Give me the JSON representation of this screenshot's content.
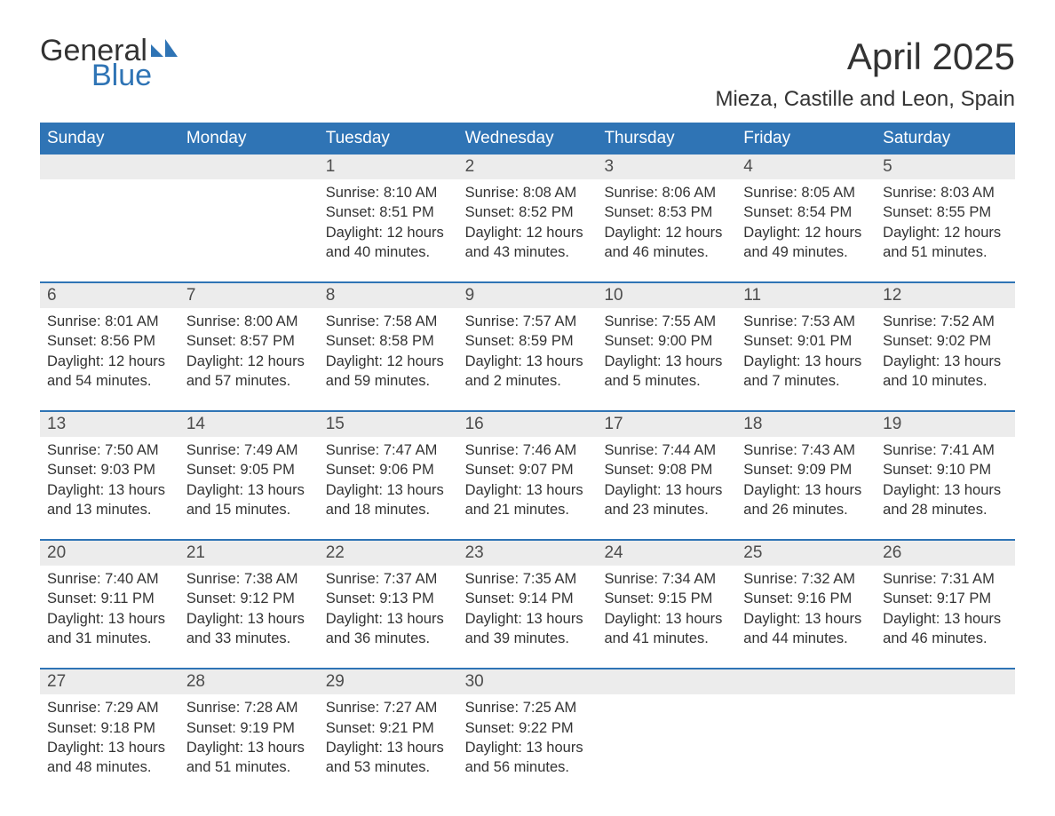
{
  "logo": {
    "text1": "General",
    "text2": "Blue",
    "flag_color": "#2f74b5"
  },
  "title": "April 2025",
  "location": "Mieza, Castille and Leon, Spain",
  "colors": {
    "header_bg": "#2f74b5",
    "header_text": "#ffffff",
    "daynum_bg": "#ececec",
    "row_border": "#2f74b5",
    "body_text": "#333333"
  },
  "weekdays": [
    "Sunday",
    "Monday",
    "Tuesday",
    "Wednesday",
    "Thursday",
    "Friday",
    "Saturday"
  ],
  "weeks": [
    [
      {
        "n": "",
        "lines": []
      },
      {
        "n": "",
        "lines": []
      },
      {
        "n": "1",
        "lines": [
          "Sunrise: 8:10 AM",
          "Sunset: 8:51 PM",
          "Daylight: 12 hours and 40 minutes."
        ]
      },
      {
        "n": "2",
        "lines": [
          "Sunrise: 8:08 AM",
          "Sunset: 8:52 PM",
          "Daylight: 12 hours and 43 minutes."
        ]
      },
      {
        "n": "3",
        "lines": [
          "Sunrise: 8:06 AM",
          "Sunset: 8:53 PM",
          "Daylight: 12 hours and 46 minutes."
        ]
      },
      {
        "n": "4",
        "lines": [
          "Sunrise: 8:05 AM",
          "Sunset: 8:54 PM",
          "Daylight: 12 hours and 49 minutes."
        ]
      },
      {
        "n": "5",
        "lines": [
          "Sunrise: 8:03 AM",
          "Sunset: 8:55 PM",
          "Daylight: 12 hours and 51 minutes."
        ]
      }
    ],
    [
      {
        "n": "6",
        "lines": [
          "Sunrise: 8:01 AM",
          "Sunset: 8:56 PM",
          "Daylight: 12 hours and 54 minutes."
        ]
      },
      {
        "n": "7",
        "lines": [
          "Sunrise: 8:00 AM",
          "Sunset: 8:57 PM",
          "Daylight: 12 hours and 57 minutes."
        ]
      },
      {
        "n": "8",
        "lines": [
          "Sunrise: 7:58 AM",
          "Sunset: 8:58 PM",
          "Daylight: 12 hours and 59 minutes."
        ]
      },
      {
        "n": "9",
        "lines": [
          "Sunrise: 7:57 AM",
          "Sunset: 8:59 PM",
          "Daylight: 13 hours and 2 minutes."
        ]
      },
      {
        "n": "10",
        "lines": [
          "Sunrise: 7:55 AM",
          "Sunset: 9:00 PM",
          "Daylight: 13 hours and 5 minutes."
        ]
      },
      {
        "n": "11",
        "lines": [
          "Sunrise: 7:53 AM",
          "Sunset: 9:01 PM",
          "Daylight: 13 hours and 7 minutes."
        ]
      },
      {
        "n": "12",
        "lines": [
          "Sunrise: 7:52 AM",
          "Sunset: 9:02 PM",
          "Daylight: 13 hours and 10 minutes."
        ]
      }
    ],
    [
      {
        "n": "13",
        "lines": [
          "Sunrise: 7:50 AM",
          "Sunset: 9:03 PM",
          "Daylight: 13 hours and 13 minutes."
        ]
      },
      {
        "n": "14",
        "lines": [
          "Sunrise: 7:49 AM",
          "Sunset: 9:05 PM",
          "Daylight: 13 hours and 15 minutes."
        ]
      },
      {
        "n": "15",
        "lines": [
          "Sunrise: 7:47 AM",
          "Sunset: 9:06 PM",
          "Daylight: 13 hours and 18 minutes."
        ]
      },
      {
        "n": "16",
        "lines": [
          "Sunrise: 7:46 AM",
          "Sunset: 9:07 PM",
          "Daylight: 13 hours and 21 minutes."
        ]
      },
      {
        "n": "17",
        "lines": [
          "Sunrise: 7:44 AM",
          "Sunset: 9:08 PM",
          "Daylight: 13 hours and 23 minutes."
        ]
      },
      {
        "n": "18",
        "lines": [
          "Sunrise: 7:43 AM",
          "Sunset: 9:09 PM",
          "Daylight: 13 hours and 26 minutes."
        ]
      },
      {
        "n": "19",
        "lines": [
          "Sunrise: 7:41 AM",
          "Sunset: 9:10 PM",
          "Daylight: 13 hours and 28 minutes."
        ]
      }
    ],
    [
      {
        "n": "20",
        "lines": [
          "Sunrise: 7:40 AM",
          "Sunset: 9:11 PM",
          "Daylight: 13 hours and 31 minutes."
        ]
      },
      {
        "n": "21",
        "lines": [
          "Sunrise: 7:38 AM",
          "Sunset: 9:12 PM",
          "Daylight: 13 hours and 33 minutes."
        ]
      },
      {
        "n": "22",
        "lines": [
          "Sunrise: 7:37 AM",
          "Sunset: 9:13 PM",
          "Daylight: 13 hours and 36 minutes."
        ]
      },
      {
        "n": "23",
        "lines": [
          "Sunrise: 7:35 AM",
          "Sunset: 9:14 PM",
          "Daylight: 13 hours and 39 minutes."
        ]
      },
      {
        "n": "24",
        "lines": [
          "Sunrise: 7:34 AM",
          "Sunset: 9:15 PM",
          "Daylight: 13 hours and 41 minutes."
        ]
      },
      {
        "n": "25",
        "lines": [
          "Sunrise: 7:32 AM",
          "Sunset: 9:16 PM",
          "Daylight: 13 hours and 44 minutes."
        ]
      },
      {
        "n": "26",
        "lines": [
          "Sunrise: 7:31 AM",
          "Sunset: 9:17 PM",
          "Daylight: 13 hours and 46 minutes."
        ]
      }
    ],
    [
      {
        "n": "27",
        "lines": [
          "Sunrise: 7:29 AM",
          "Sunset: 9:18 PM",
          "Daylight: 13 hours and 48 minutes."
        ]
      },
      {
        "n": "28",
        "lines": [
          "Sunrise: 7:28 AM",
          "Sunset: 9:19 PM",
          "Daylight: 13 hours and 51 minutes."
        ]
      },
      {
        "n": "29",
        "lines": [
          "Sunrise: 7:27 AM",
          "Sunset: 9:21 PM",
          "Daylight: 13 hours and 53 minutes."
        ]
      },
      {
        "n": "30",
        "lines": [
          "Sunrise: 7:25 AM",
          "Sunset: 9:22 PM",
          "Daylight: 13 hours and 56 minutes."
        ]
      },
      {
        "n": "",
        "lines": []
      },
      {
        "n": "",
        "lines": []
      },
      {
        "n": "",
        "lines": []
      }
    ]
  ]
}
